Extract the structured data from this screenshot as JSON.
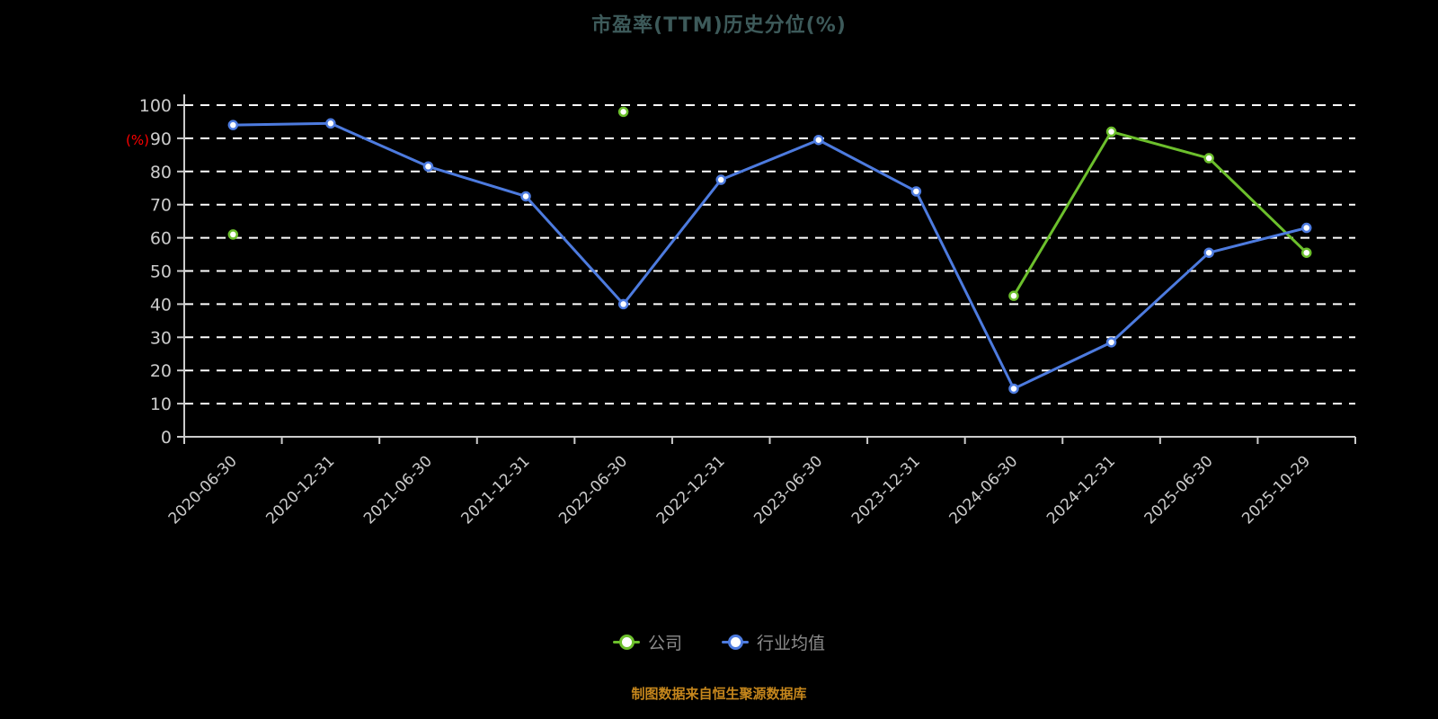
{
  "page": {
    "background": "#000000"
  },
  "footer": {
    "note": "制图数据来自恒生聚源数据库",
    "color": "#c5861c"
  },
  "axis_style": {
    "axis_color": "#cccccc",
    "gridline_color": "#ffffff",
    "tick_label_color": "#cccccc"
  },
  "chart_data": {
    "type": "line",
    "title": "市盈率(TTM)历史分位(%)",
    "title_color": "#3d5a5a",
    "xlabel": "",
    "ylabel": "(%)",
    "ylabel_color": "#ff0000",
    "ylim": [
      0,
      100
    ],
    "ytick_step": 10,
    "grid": true,
    "grid_style": "dashed",
    "legend_position": "bottom",
    "categories": [
      "2020-06-30",
      "2020-12-31",
      "2021-06-30",
      "2021-12-31",
      "2022-06-30",
      "2022-12-31",
      "2023-06-30",
      "2023-12-31",
      "2024-06-30",
      "2024-12-31",
      "2025-06-30",
      "2025-10-29"
    ],
    "series": [
      {
        "name": "公司",
        "color": "#6cbf2c",
        "values": [
          61,
          null,
          null,
          null,
          98,
          null,
          null,
          null,
          42.5,
          92,
          84,
          55.5
        ]
      },
      {
        "name": "行业均值",
        "color": "#4d7bdf",
        "values": [
          94,
          94.5,
          81.5,
          72.5,
          40,
          77.5,
          89.5,
          74,
          14.5,
          28.5,
          55.5,
          63
        ]
      }
    ]
  }
}
